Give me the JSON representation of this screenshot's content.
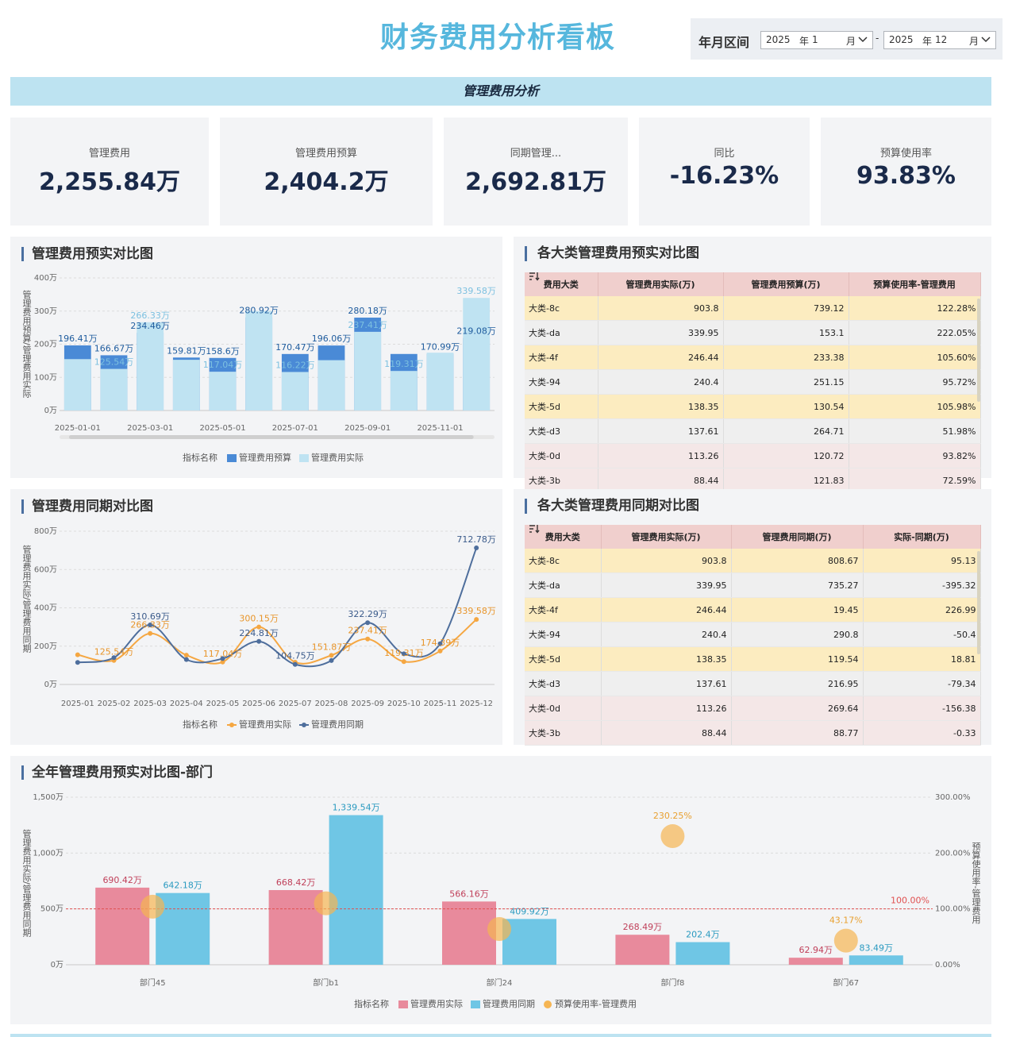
{
  "header": {
    "title": "财务费用分析看板",
    "filter": {
      "label": "年月区间",
      "separator": "-",
      "start": {
        "year": "2025",
        "year_unit": "年",
        "month": "1",
        "month_unit": "月"
      },
      "end": {
        "year": "2025",
        "year_unit": "年",
        "month": "12",
        "month_unit": "月"
      }
    }
  },
  "banner": "管理费用分析",
  "kpis": [
    {
      "label": "管理费用",
      "value": "2,255.84万"
    },
    {
      "label": "管理费用预算",
      "value": "2,404.2万"
    },
    {
      "label": "同期管理...",
      "value": "2,692.81万"
    },
    {
      "label": "同比",
      "value": "-16.23%"
    },
    {
      "label": "预算使用率",
      "value": "93.83%"
    }
  ],
  "chart_data": [
    {
      "type": "bar",
      "title": "管理费用预实对比图",
      "y_label": "管理费用预算/管理费用实际",
      "legend_title": "指标名称",
      "grid": true,
      "categories": [
        "2025-01-01",
        null,
        "2025-03-01",
        null,
        "2025-05-01",
        null,
        "2025-07-01",
        null,
        "2025-09-01",
        null,
        "2025-11-01",
        null
      ],
      "series": [
        {
          "name": "管理费用预算",
          "color": "#4a8ad6",
          "values": [
            196.41,
            166.67,
            234.46,
            159.81,
            158.6,
            280.92,
            170.47,
            196.06,
            280.18,
            170.55,
            170.99,
            219.08
          ],
          "value_labels": [
            "196.41万",
            "166.67万",
            "234.46万",
            "159.81万",
            "158.6万",
            "280.92万",
            "170.47万",
            "196.06万",
            "280.18万",
            null,
            "170.99万",
            "219.08万"
          ]
        },
        {
          "name": "管理费用实际",
          "color": "#bfe3f2",
          "values": [
            155,
            125.54,
            266.33,
            153,
            117.04,
            300.15,
            116.22,
            151.87,
            237.41,
            119.31,
            174.39,
            339.58
          ],
          "value_labels": [
            null,
            "125.54万",
            "266.33万",
            null,
            "117.04万",
            null,
            "116.22万",
            null,
            "237.41万",
            "119.31万",
            null,
            "339.58万"
          ]
        }
      ],
      "ylim": [
        0,
        400
      ],
      "yticks": [
        {
          "value": 0,
          "label": "0万"
        },
        {
          "value": 100,
          "label": "100万"
        },
        {
          "value": 200,
          "label": "200万"
        },
        {
          "value": 300,
          "label": "300万"
        },
        {
          "value": 400,
          "label": "400万"
        }
      ]
    },
    {
      "type": "line",
      "title": "管理费用同期对比图",
      "y_label": "管理费用实际/管理费用同期",
      "legend_title": "指标名称",
      "grid": true,
      "categories": [
        "2025-01",
        "2025-02",
        "2025-03",
        "2025-04",
        "2025-05",
        "2025-06",
        "2025-07",
        "2025-08",
        "2025-09",
        "2025-10",
        "2025-11",
        "2025-12"
      ],
      "series": [
        {
          "name": "管理费用实际",
          "color": "#f5a742",
          "values": [
            155,
            125.54,
            266.33,
            153,
            117.04,
            300.15,
            116.22,
            151.87,
            237.41,
            119.31,
            174.39,
            339.58
          ],
          "value_labels": [
            null,
            "125.54万",
            "266.33万",
            null,
            "117.04万",
            "300.15万",
            null,
            "151.87万",
            "237.41万",
            "119.31万",
            "174.39万",
            "339.58万"
          ]
        },
        {
          "name": "管理费用同期",
          "color": "#4e6e9c",
          "values": [
            115,
            140,
            310.69,
            130,
            135,
            224.81,
            104.75,
            125,
            322.29,
            160,
            212.49,
            712.78
          ],
          "value_labels": [
            null,
            null,
            "310.69万",
            null,
            null,
            "224.81万",
            "104.75万",
            null,
            "322.29万",
            null,
            null,
            "712.78万"
          ]
        }
      ],
      "ylim": [
        0,
        800
      ],
      "yticks": [
        {
          "value": 0,
          "label": "0万"
        },
        {
          "value": 200,
          "label": "200万"
        },
        {
          "value": 400,
          "label": "400万"
        },
        {
          "value": 600,
          "label": "600万"
        },
        {
          "value": 800,
          "label": "800万"
        }
      ]
    },
    {
      "type": "combo",
      "title": "全年管理费用预实对比图-部门",
      "y_label": "管理费用实际/管理费用同期",
      "y2_label": "预算使用率-管理费用",
      "legend_title": "指标名称",
      "grid": true,
      "categories": [
        "部门45",
        "部门b1",
        "部门24",
        "部门f8",
        "部门67"
      ],
      "series": [
        {
          "name": "管理费用实际",
          "type": "bar",
          "color": "#e88a9c",
          "values": [
            690.42,
            668.42,
            566.16,
            268.49,
            62.94
          ],
          "value_labels": [
            "690.42万",
            "668.42万",
            "566.16万",
            "268.49万",
            "62.94万"
          ]
        },
        {
          "name": "管理费用同期",
          "type": "bar",
          "color": "#6fc6e5",
          "values": [
            642.18,
            1339.54,
            409.92,
            202.4,
            83.49
          ],
          "value_labels": [
            "642.18万",
            "1,339.54万",
            "409.92万",
            "202.4万",
            "83.49万"
          ]
        },
        {
          "name": "预算使用率-管理费用",
          "type": "scatter",
          "axis": "y2",
          "color": "#f5b553",
          "values": [
            104,
            110,
            64,
            230.25,
            43.17
          ],
          "value_labels": [
            null,
            null,
            null,
            "230.25%",
            "43.17%"
          ]
        }
      ],
      "ylim": [
        0,
        1500
      ],
      "yticks": [
        {
          "value": 0,
          "label": "0万"
        },
        {
          "value": 500,
          "label": "500万"
        },
        {
          "value": 1000,
          "label": "1,000万"
        },
        {
          "value": 1500,
          "label": "1,500万"
        }
      ],
      "y2lim": [
        0,
        300
      ],
      "y2ticks": [
        {
          "value": 0,
          "label": "0.00%"
        },
        {
          "value": 100,
          "label": "100.00%"
        },
        {
          "value": 200,
          "label": "200.00%"
        },
        {
          "value": 300,
          "label": "300.00%"
        }
      ],
      "reference_line": {
        "value": 100,
        "label": "100.00%",
        "axis": "y2",
        "color": "#e05050"
      }
    }
  ],
  "tables": [
    {
      "title": "各大类管理费用预实对比图",
      "columns": [
        "费用大类",
        "管理费用实际(万)",
        "管理费用预算(万)",
        "预算使用率-管理费用"
      ],
      "rows": [
        [
          "大类-8c",
          903.8,
          739.12,
          "122.28%"
        ],
        [
          "大类-da",
          339.95,
          153.1,
          "222.05%"
        ],
        [
          "大类-4f",
          246.44,
          233.38,
          "105.60%"
        ],
        [
          "大类-94",
          240.4,
          251.15,
          "95.72%"
        ],
        [
          "大类-5d",
          138.35,
          130.54,
          "105.98%"
        ],
        [
          "大类-d3",
          137.61,
          264.71,
          "51.98%"
        ],
        [
          "大类-0d",
          113.26,
          120.72,
          "93.82%"
        ],
        [
          "大类-3b",
          88.44,
          121.83,
          "72.59%"
        ]
      ]
    },
    {
      "title": "各大类管理费用同期对比图",
      "columns": [
        "费用大类",
        "管理费用实际(万)",
        "管理费用同期(万)",
        "实际-同期(万)"
      ],
      "rows": [
        [
          "大类-8c",
          903.8,
          808.67,
          95.13
        ],
        [
          "大类-da",
          339.95,
          735.27,
          -395.32
        ],
        [
          "大类-4f",
          246.44,
          19.45,
          226.99
        ],
        [
          "大类-94",
          240.4,
          290.8,
          -50.4
        ],
        [
          "大类-5d",
          138.35,
          119.54,
          18.81
        ],
        [
          "大类-d3",
          137.61,
          216.95,
          -79.34
        ],
        [
          "大类-0d",
          113.26,
          269.64,
          -156.38
        ],
        [
          "大类-3b",
          88.44,
          88.77,
          -0.33
        ]
      ]
    }
  ]
}
